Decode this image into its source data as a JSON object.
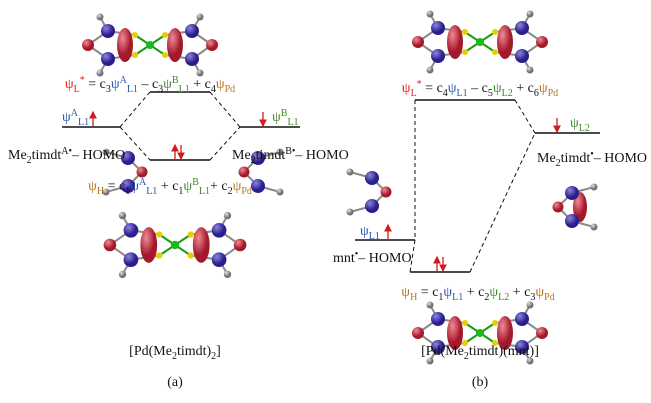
{
  "panel_a": {
    "top_formula": [
      "ψ",
      "L",
      "*",
      " = c",
      "3",
      "ψ",
      "A",
      "L1",
      " – c",
      "3",
      "ψ",
      "B",
      "L1",
      " + c",
      "4",
      "ψ",
      "Pd"
    ],
    "homo_formula": [
      "ψ",
      "H",
      " = c",
      "1",
      "ψ",
      "A",
      "L1",
      " + c",
      "1",
      "ψ",
      "B",
      "L1",
      "+ c",
      "2",
      "ψ",
      "Pd"
    ],
    "left_level_label": [
      "ψ",
      "A",
      "L1"
    ],
    "right_level_label": [
      "ψ",
      "B",
      "L1"
    ],
    "left_name": [
      "Me",
      "2",
      "timdt",
      "A•",
      "– HOMO"
    ],
    "right_name": [
      "Me",
      "2",
      "timdt",
      "B•",
      "– HOMO"
    ],
    "caption": [
      "[Pd(Me",
      "2",
      "timdt)",
      "2",
      "]"
    ],
    "label": "(a)"
  },
  "panel_b": {
    "top_formula": [
      "ψ",
      "L",
      "*",
      " = c",
      "4",
      "ψ",
      "L1",
      " – c",
      "5",
      "ψ",
      "L2",
      " + c",
      "6",
      "ψ",
      "Pd"
    ],
    "homo_formula": [
      "ψ",
      "H",
      " = c",
      "1",
      "ψ",
      "L1",
      " + c",
      "2",
      "ψ",
      "L2",
      " + c",
      "3",
      "ψ",
      "Pd"
    ],
    "left_level_label": [
      "ψ",
      "L1"
    ],
    "right_level_label": [
      "ψ",
      "L2"
    ],
    "left_name": [
      "mnt",
      "•",
      "– HOMO"
    ],
    "right_name": [
      "Me",
      "2",
      "timdt",
      "•",
      "– HOMO"
    ],
    "caption": [
      "[Pd(Me",
      "2",
      "timdt)(mnt)]"
    ],
    "label": "(b)"
  }
}
